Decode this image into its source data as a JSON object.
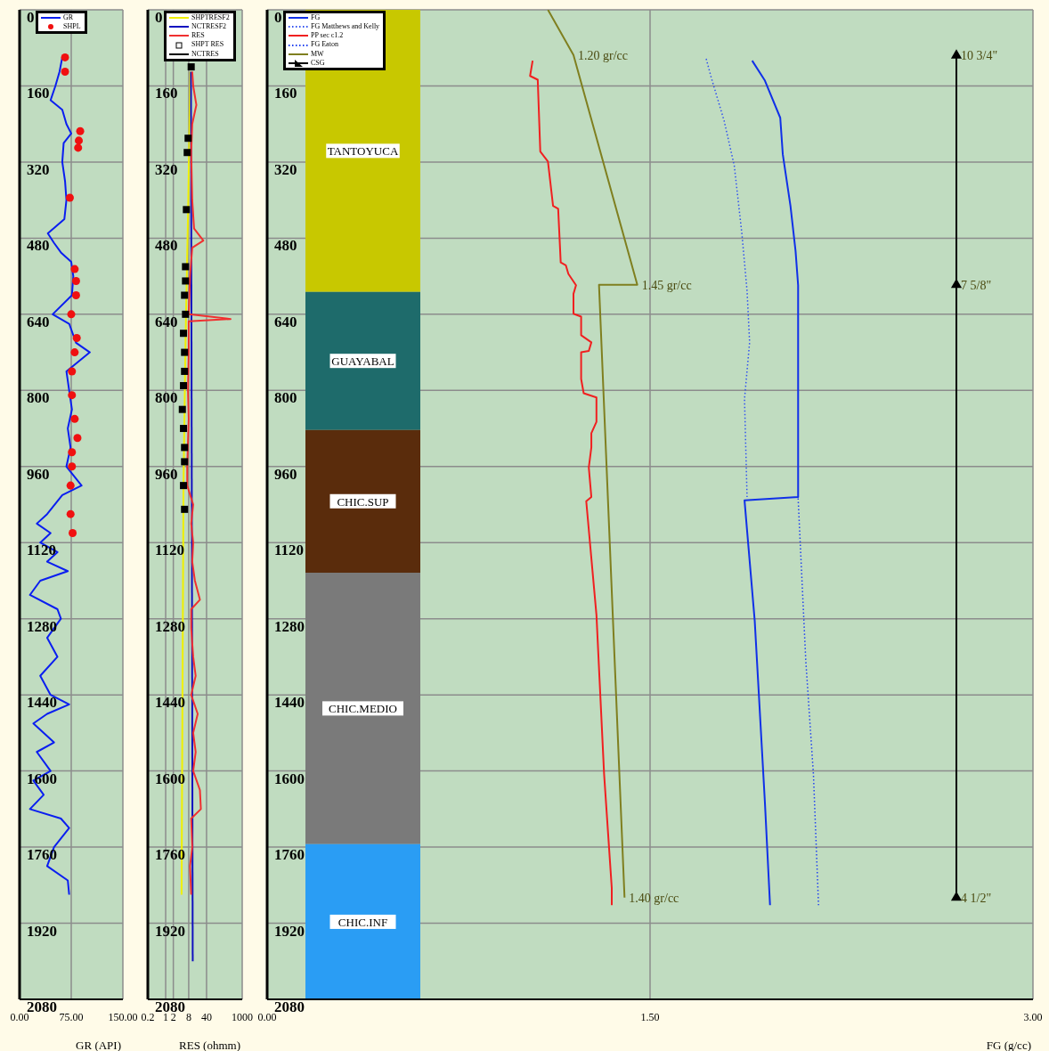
{
  "chart_data": [
    {
      "type": "line",
      "orientation": "horizontal",
      "xlabel": "GR (API)",
      "xlim": [
        0,
        150
      ],
      "xticks": [
        {
          "value": 0,
          "label": "0.00"
        },
        {
          "value": 75,
          "label": "75.00"
        },
        {
          "value": 150,
          "label": "150.00"
        }
      ],
      "ylim": [
        2080,
        0
      ],
      "yticks": [
        0,
        160,
        320,
        480,
        640,
        800,
        960,
        1120,
        1280,
        1440,
        1600,
        1760,
        1920,
        2080
      ],
      "grid": true,
      "legend": "top left",
      "series": [
        {
          "name": "GR",
          "color": "#0a1ef0",
          "type": "line",
          "marker": "none",
          "line_style": "solid",
          "x": [
            100,
            130,
            160,
            190,
            210,
            240,
            260,
            280,
            320,
            360,
            400,
            440,
            470,
            490,
            510,
            530,
            560,
            600,
            640,
            660,
            700,
            720,
            760,
            800,
            840,
            880,
            920,
            960,
            1000,
            1020,
            1060,
            1080,
            1100,
            1120,
            1140,
            1160,
            1180,
            1200,
            1230,
            1260,
            1280,
            1320,
            1360,
            1400,
            1440,
            1460,
            1480,
            1500,
            1540,
            1560,
            1600,
            1620,
            1650,
            1680,
            1700,
            1720,
            1760,
            1800,
            1830,
            1860
          ],
          "values": [
            62,
            58,
            52,
            45,
            62,
            68,
            75,
            64,
            62,
            66,
            68,
            65,
            41,
            50,
            60,
            75,
            78,
            76,
            48,
            72,
            82,
            102,
            68,
            72,
            76,
            70,
            74,
            68,
            90,
            62,
            40,
            25,
            45,
            30,
            55,
            40,
            70,
            30,
            15,
            55,
            60,
            40,
            55,
            30,
            45,
            72,
            40,
            20,
            50,
            25,
            45,
            20,
            35,
            15,
            60,
            72,
            50,
            40,
            70,
            72
          ]
        },
        {
          "name": "SHPL",
          "color": "#f01010",
          "type": "scatter",
          "marker": "circle",
          "x": [
            100,
            130,
            255,
            275,
            290,
            395,
            545,
            570,
            600,
            640,
            690,
            720,
            760,
            810,
            860,
            900,
            930,
            960,
            1000,
            1060,
            1100
          ],
          "values": [
            66,
            66,
            88,
            86,
            85,
            73,
            80,
            82,
            82,
            75,
            83,
            80,
            76,
            76,
            80,
            84,
            76,
            76,
            74,
            74,
            77
          ]
        }
      ]
    },
    {
      "type": "line",
      "orientation": "horizontal",
      "xlabel": "RES (ohmm)",
      "log": "x",
      "xlim": [
        0.2,
        1000
      ],
      "xticks": [
        0.2,
        1,
        2,
        8,
        40,
        1000
      ],
      "ylim": [
        2080,
        0
      ],
      "yticks": [
        0,
        160,
        320,
        480,
        640,
        800,
        960,
        1120,
        1280,
        1440,
        1600,
        1760,
        1920,
        2080
      ],
      "grid": true,
      "legend": "top left",
      "series": [
        {
          "name": "SHPTRESF2",
          "color": "#f0f000",
          "type": "line",
          "marker": "none",
          "line_style": "solid",
          "x": [
            130,
            400,
            700,
            1000,
            1400,
            1860
          ],
          "values": [
            9.2,
            7.7,
            6,
            5,
            4.6,
            4.2
          ]
        },
        {
          "name": "NCTRESF2",
          "color": "#1010c0",
          "type": "line",
          "marker": "none",
          "line_style": "solid",
          "x": [
            130,
            2000
          ],
          "values": [
            9.8,
            11.5
          ]
        },
        {
          "name": "RES",
          "color": "#f03030",
          "type": "line",
          "marker": "none",
          "line_style": "solid",
          "x": [
            130,
            160,
            200,
            240,
            300,
            400,
            460,
            485,
            500,
            560,
            640,
            650,
            655,
            720,
            800,
            860,
            960,
            1000,
            1040,
            1080,
            1120,
            1160,
            1200,
            1240,
            1260,
            1300,
            1360,
            1400,
            1440,
            1480,
            1520,
            1560,
            1600,
            1640,
            1680,
            1700,
            1760,
            1800,
            1860
          ],
          "values": [
            11,
            12,
            16,
            11,
            10,
            11,
            13,
            30,
            11,
            9,
            8,
            350,
            8,
            8,
            7.5,
            8,
            7,
            7,
            12,
            10,
            12,
            11,
            14,
            22,
            10,
            10,
            12,
            15,
            10,
            18,
            12,
            15,
            12,
            22,
            24,
            10,
            11,
            9,
            10
          ]
        },
        {
          "name": "SHPT RES",
          "color": "#000000",
          "type": "scatter",
          "marker": "square",
          "x": [
            120,
            270,
            300,
            420,
            540,
            570,
            600,
            640,
            680,
            720,
            760,
            790,
            840,
            880,
            920,
            950,
            1000,
            1050
          ],
          "values": [
            10,
            7.6,
            7,
            6.5,
            6,
            6,
            5.5,
            6,
            5,
            5.5,
            5.5,
            5,
            4.5,
            5,
            5.5,
            5.5,
            5,
            5.5
          ]
        },
        {
          "name": "NCTRES",
          "color": "#000000",
          "type": "line",
          "marker": "none",
          "line_style": "solid"
        }
      ]
    },
    {
      "type": "line",
      "orientation": "horizontal",
      "xlabel": "FG (g/cc)",
      "xlim": [
        0,
        3
      ],
      "xticks": [
        {
          "value": 0,
          "label": "0.00"
        },
        {
          "value": 1.5,
          "label": "1.50"
        },
        {
          "value": 3,
          "label": "3.00"
        }
      ],
      "ylim": [
        2080,
        0
      ],
      "yticks": [
        0,
        160,
        320,
        480,
        640,
        800,
        960,
        1120,
        1280,
        1440,
        1600,
        1760,
        1920,
        2080
      ],
      "grid": true,
      "legend": "top left",
      "bands": [
        {
          "axis": "y",
          "from": 0,
          "to": 593,
          "label": "TANTOYUCA",
          "color": "#c8c800"
        },
        {
          "axis": "y",
          "from": 593,
          "to": 883,
          "label": "GUAYABAL",
          "color": "#1e6b6b"
        },
        {
          "axis": "y",
          "from": 883,
          "to": 1183,
          "label": "CHIC.SUP",
          "color": "#5a2c0c"
        },
        {
          "axis": "y",
          "from": 1183,
          "to": 1754,
          "label": "CHIC.MEDIO",
          "color": "#7a7a7a"
        },
        {
          "axis": "y",
          "from": 1754,
          "to": 2080,
          "label": "CHIC.INF",
          "color": "#2a9df4"
        }
      ],
      "annotations": [
        {
          "text": "1.20 gr/cc",
          "x": 1.2,
          "y": 95
        },
        {
          "text": "1.45 gr/cc",
          "x": 1.45,
          "y": 578
        },
        {
          "text": "1.40 gr/cc",
          "x": 1.4,
          "y": 1866
        },
        {
          "text": "10 3/4\"",
          "x": 2.7,
          "y": 96
        },
        {
          "text": "7 5/8\"",
          "x": 2.7,
          "y": 578
        },
        {
          "text": "4 1/2\"",
          "x": 2.7,
          "y": 1866
        }
      ],
      "series": [
        {
          "name": "FG",
          "color": "#1030e8",
          "type": "line",
          "marker": "none",
          "line_style": "solid",
          "x": [
            107,
            149,
            227,
            304,
            412,
            507,
            579,
            699,
            806,
            890,
            1024,
            1031,
            1284,
            1667,
            1882
          ],
          "values": [
            1.9,
            1.95,
            2.01,
            2.02,
            2.05,
            2.07,
            2.08,
            2.08,
            2.08,
            2.08,
            2.08,
            1.87,
            1.91,
            1.95,
            1.97
          ]
        },
        {
          "name": "FG Matthews and Kelly",
          "color": "#3050f0",
          "type": "line",
          "marker": "none",
          "line_style": "dotted",
          "x": [
            103,
            143,
            233,
            328,
            472,
            591,
            699,
            818,
            1024
          ],
          "values": [
            1.72,
            1.74,
            1.79,
            1.83,
            1.86,
            1.88,
            1.89,
            1.87,
            1.88
          ]
        },
        {
          "name": "PP sec c1.2",
          "color": "#f02020",
          "type": "line",
          "marker": "none",
          "line_style": "solid",
          "x": [
            107,
            139,
            147,
            298,
            319,
            412,
            418,
            531,
            537,
            555,
            579,
            597,
            639,
            645,
            684,
            699,
            717,
            720,
            776,
            806,
            815,
            866,
            890,
            920,
            962,
            1024,
            1033,
            1272,
            1607,
            1846,
            1882
          ],
          "values": [
            1.04,
            1.03,
            1.06,
            1.07,
            1.1,
            1.12,
            1.14,
            1.15,
            1.17,
            1.18,
            1.21,
            1.2,
            1.2,
            1.23,
            1.23,
            1.27,
            1.26,
            1.23,
            1.23,
            1.24,
            1.29,
            1.29,
            1.27,
            1.27,
            1.26,
            1.27,
            1.25,
            1.29,
            1.32,
            1.35,
            1.35
          ]
        },
        {
          "name": "FG Eaton",
          "color": "#2040f0",
          "type": "line",
          "marker": "none",
          "line_style": "dotted",
          "x": [
            1027,
            1368,
            1607,
            1882
          ],
          "values": [
            2.08,
            2.11,
            2.14,
            2.16
          ]
        },
        {
          "name": "MW",
          "color": "#7f7f1f",
          "type": "line",
          "marker": "none",
          "line_style": "solid",
          "x": [
            0,
            95,
            578,
            578,
            1866
          ],
          "values": [
            1.1,
            1.2,
            1.45,
            1.3,
            1.4
          ]
        },
        {
          "name": "CSG",
          "color": "#000000",
          "type": "line",
          "marker": "triangle",
          "line_style": "solid",
          "x": [
            96,
            578,
            1866
          ],
          "values": [
            2.7,
            2.7,
            2.7
          ]
        }
      ]
    }
  ]
}
